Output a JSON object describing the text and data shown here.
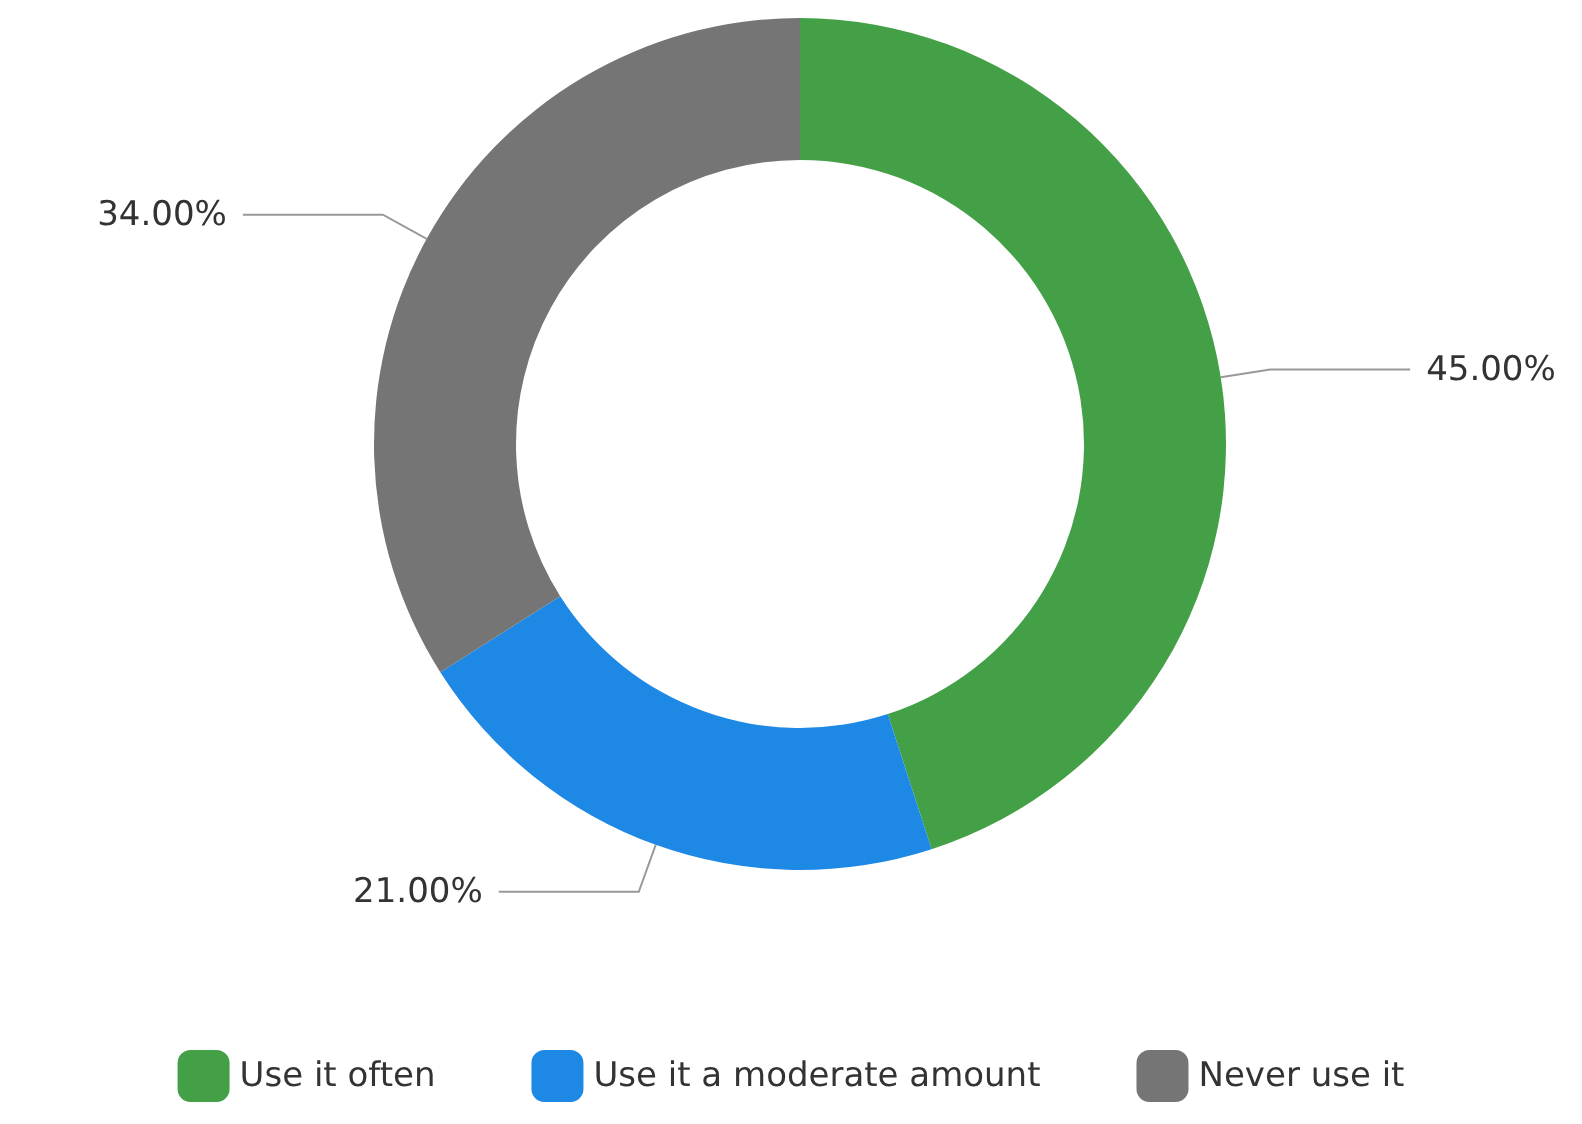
{
  "chart_data": {
    "type": "donut",
    "categories": [
      "Use it often",
      "Use it a moderate amount",
      "Never use it"
    ],
    "values": [
      45,
      21,
      34
    ],
    "colors": [
      "#43a047",
      "#1e88e5",
      "#757575"
    ],
    "value_labels": [
      "45.00%",
      "21.00%",
      "34.00%"
    ],
    "legend": "bottom"
  }
}
